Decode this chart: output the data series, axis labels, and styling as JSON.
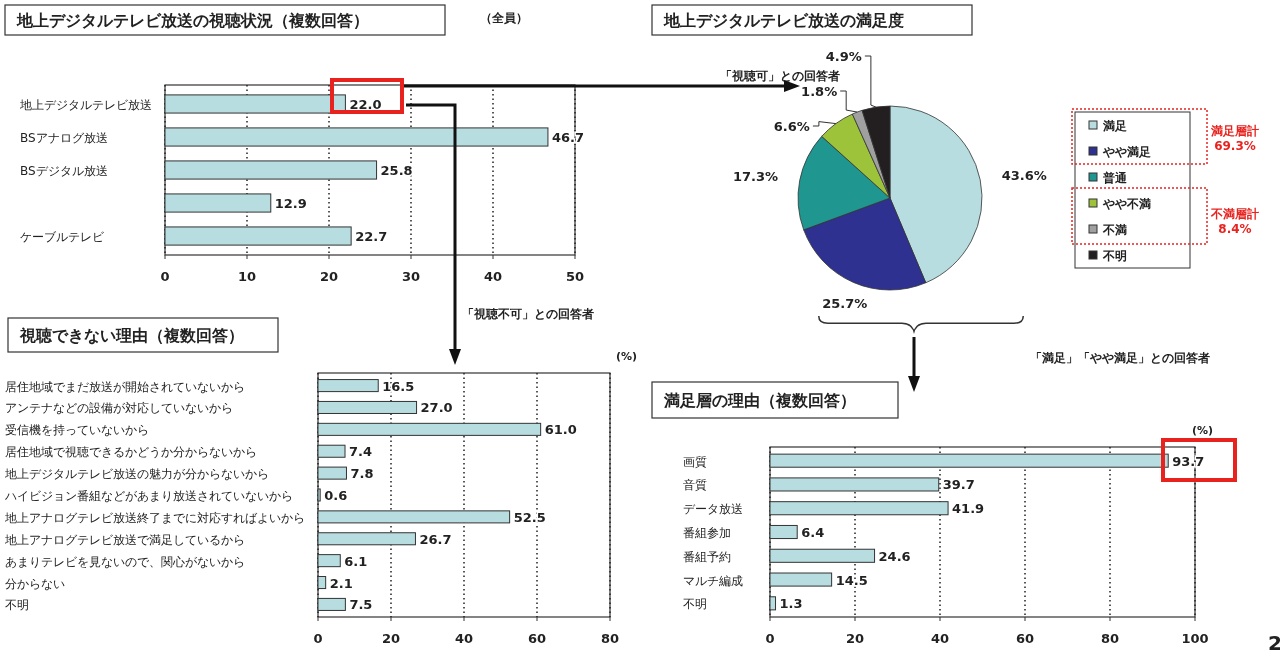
{
  "chart_data": [
    {
      "type": "bar",
      "orientation": "horizontal",
      "title": "地上デジタルテレビ放送の視聴状況（複数回答）",
      "categories": [
        "地上デジタルテレビ放送",
        "BSアナログ放送",
        "BSデジタル放送",
        null,
        "ケーブルテレビ"
      ],
      "values": [
        22.0,
        46.7,
        25.8,
        12.9,
        22.7
      ],
      "value_labels": [
        "22.0",
        "46.7",
        "25.8",
        "12.9",
        "22.7"
      ],
      "color": "#b8dde0",
      "xlim": [
        0,
        50
      ],
      "xticks": [
        0,
        10,
        20,
        30,
        40,
        50
      ],
      "grid": "x",
      "annotations": [
        "（全員）",
        "「視聴可」との回答者",
        "「視聴不可」との回答者"
      ]
    },
    {
      "type": "pie",
      "title": "地上デジタルテレビ放送の満足度",
      "categories": [
        "満足",
        "やや満足",
        "普通",
        "やや不満",
        "不満",
        "不明"
      ],
      "values": [
        43.6,
        25.7,
        17.3,
        6.6,
        1.8,
        4.9
      ],
      "value_labels": [
        "43.6%",
        "25.7%",
        "17.3%",
        "6.6%",
        "1.8%",
        "4.9%"
      ],
      "colors": [
        "#b8dde0",
        "#2e3190",
        "#1f9690",
        "#9cc33a",
        "#a0a0a0",
        "#231f20"
      ],
      "legend": "right",
      "annotations": [
        "満足層計 69.3%",
        "不満層計 8.4%",
        "「満足」「やや満足」との回答者"
      ]
    },
    {
      "type": "bar",
      "orientation": "horizontal",
      "title": "視聴できない理由（複数回答）",
      "categories": [
        "居住地域でまだ放送が開始されていないから",
        "アンテナなどの設備が対応していないから",
        "受信機を持っていないから",
        "居住地域で視聴できるかどうか分からないから",
        "地上デジタルテレビ放送の魅力が分からないから",
        "ハイビジョン番組などがあまり放送されていないから",
        "地上アナログテレビ放送終了までに対応すればよいから",
        "地上アナログテレビ放送で満足しているから",
        "あまりテレビを見ないので、関心がないから",
        "分からない",
        "不明"
      ],
      "values": [
        16.5,
        27.0,
        61.0,
        7.4,
        7.8,
        0.6,
        52.5,
        26.7,
        6.1,
        2.1,
        7.5
      ],
      "value_labels": [
        "16.5",
        "27.0",
        "61.0",
        "7.4",
        "7.8",
        "0.6",
        "52.5",
        "26.7",
        "6.1",
        "2.1",
        "7.5"
      ],
      "color": "#b8dde0",
      "xlim": [
        0,
        80
      ],
      "xticks": [
        0,
        20,
        40,
        60,
        80
      ],
      "grid": "x",
      "annotations": [
        "(%)"
      ]
    },
    {
      "type": "bar",
      "orientation": "horizontal",
      "title": "満足層の理由（複数回答）",
      "categories": [
        "画質",
        "音質",
        "データ放送",
        "番組参加",
        "番組予約",
        "マルチ編成",
        "不明"
      ],
      "values": [
        93.7,
        39.7,
        41.9,
        6.4,
        24.6,
        14.5,
        1.3
      ],
      "value_labels": [
        "93.7",
        "39.7",
        "41.9",
        "6.4",
        "24.6",
        "14.5",
        "1.3"
      ],
      "color": "#b8dde0",
      "xlim": [
        0,
        100
      ],
      "xticks": [
        0,
        20,
        40,
        60,
        80,
        100
      ],
      "grid": "x",
      "annotations": [
        "(%)",
        "2"
      ]
    }
  ]
}
